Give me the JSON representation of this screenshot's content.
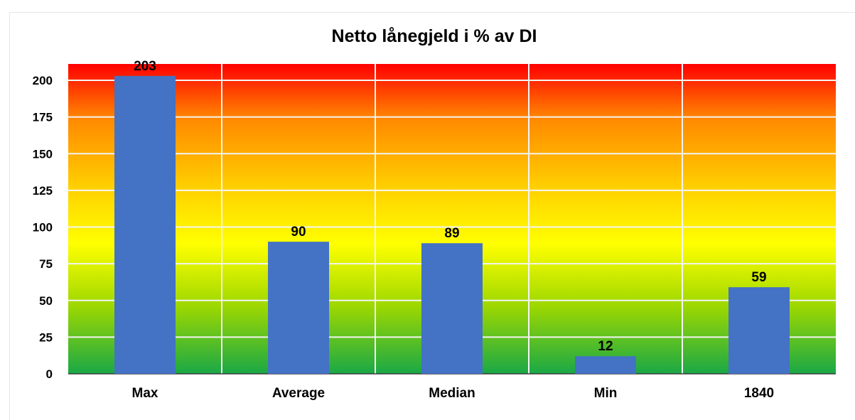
{
  "chart_data": {
    "type": "bar",
    "title": "Netto lånegjeld i % av DI",
    "xlabel": "",
    "ylabel": "",
    "categories": [
      "Max",
      "Average",
      "Median",
      "Min",
      "1840"
    ],
    "values": [
      203,
      90,
      89,
      12,
      59
    ],
    "data_labels": [
      "203",
      "90",
      "89",
      "12",
      "59"
    ],
    "y_ticks": [
      0,
      25,
      50,
      75,
      100,
      125,
      150,
      175,
      200
    ],
    "y_tick_labels": [
      "0",
      "25",
      "50",
      "75",
      "100",
      "125",
      "150",
      "175",
      "200"
    ],
    "ylim": [
      0,
      210
    ],
    "grid": true,
    "legend": "none",
    "colors": {
      "bar": "#4472c4",
      "grid": "#f2f2f2",
      "background_gradient": [
        "#ff0000",
        "#ff8a00",
        "#ffd200",
        "#ffff00",
        "#9ed800",
        "#1aa846"
      ]
    }
  }
}
